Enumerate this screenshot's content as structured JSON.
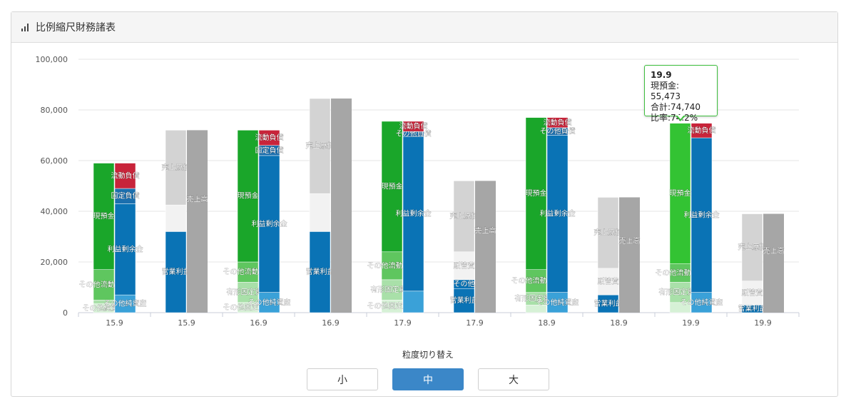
{
  "panel": {
    "title": "比例縮尺財務諸表",
    "icon": "bar-signal-icon"
  },
  "granularity": {
    "label": "粒度切り替え",
    "options": [
      "小",
      "中",
      "大"
    ],
    "selected": "中"
  },
  "tooltip": {
    "title": "19.9",
    "line1": "現預金: 55,473",
    "line2": "合計:74,740",
    "line3": "比率:74.2%"
  },
  "colors": {
    "cash": "#1aa62a",
    "other_current_assets": "#5fc65f",
    "tangible_assets": "#a9e0a9",
    "other_assets": "#d6f1d6",
    "current_liabilities": "#c8243a",
    "fixed_liabilities": "#1b6fae",
    "retained_earnings": "#0a73b5",
    "other_net_assets": "#3aa1d8",
    "cost_of_sales": "#d3d3d3",
    "sga": "#f2f2f2",
    "other_expense": "#0a73b5",
    "operating_profit": "#0a73b5",
    "sales": "#a6a6a6",
    "highlight_cash": "#33c333"
  },
  "chart_data": {
    "type": "bar",
    "subtype": "stacked-paired",
    "ylim": [
      0,
      100000
    ],
    "yticks": [
      "0",
      "20,000",
      "40,000",
      "60,000",
      "80,000",
      "100,000"
    ],
    "categories": [
      "15.9",
      "15.9",
      "16.9",
      "16.9",
      "17.9",
      "17.9",
      "18.9",
      "18.9",
      "19.9",
      "19.9"
    ],
    "groups": [
      {
        "kind": "bs",
        "category": "15.9",
        "assets": [
          {
            "label": "その他純資産",
            "value": 3500,
            "color": "other_assets"
          },
          {
            "label": "",
            "value": 1500,
            "color": "tangible_assets"
          },
          {
            "label": "その他流動資産",
            "value": 12000,
            "color": "other_current_assets"
          },
          {
            "label": "現預金",
            "value": 42000,
            "color": "cash"
          }
        ],
        "liabilities": [
          {
            "label": "その他純資産",
            "value": 7000,
            "color": "other_net_assets"
          },
          {
            "label": "利益剰余金",
            "value": 36000,
            "color": "retained_earnings"
          },
          {
            "label": "固定負債",
            "value": 6000,
            "color": "fixed_liabilities"
          },
          {
            "label": "流動負債",
            "value": 10000,
            "color": "current_liabilities"
          }
        ]
      },
      {
        "kind": "pl",
        "category": "15.9",
        "expenses": [
          {
            "label": "営業利益",
            "value": 32000,
            "color": "operating_profit"
          },
          {
            "label": "",
            "value": 10500,
            "color": "sga"
          },
          {
            "label": "売上原価",
            "value": 29500,
            "color": "cost_of_sales"
          }
        ],
        "sales": {
          "label": "売上高",
          "value": 72000
        }
      },
      {
        "kind": "bs",
        "category": "16.9",
        "assets": [
          {
            "label": "その他固定資産",
            "value": 4000,
            "color": "other_assets"
          },
          {
            "label": "有形固定資産",
            "value": 8000,
            "color": "tangible_assets"
          },
          {
            "label": "その他流動資産",
            "value": 8000,
            "color": "other_current_assets"
          },
          {
            "label": "現預金",
            "value": 52000,
            "color": "cash"
          }
        ],
        "liabilities": [
          {
            "label": "その他純資産",
            "value": 8000,
            "color": "other_net_assets"
          },
          {
            "label": "利益剰余金",
            "value": 54000,
            "color": "retained_earnings"
          },
          {
            "label": "固定負債",
            "value": 4000,
            "color": "fixed_liabilities"
          },
          {
            "label": "流動負債",
            "value": 6000,
            "color": "current_liabilities"
          }
        ]
      },
      {
        "kind": "pl",
        "category": "16.9",
        "expenses": [
          {
            "label": "営業利益",
            "value": 32000,
            "color": "operating_profit"
          },
          {
            "label": "",
            "value": 15000,
            "color": "sga"
          },
          {
            "label": "売上原価",
            "value": 37500,
            "color": "cost_of_sales"
          }
        ],
        "sales": {
          "label": "",
          "value": 84500
        }
      },
      {
        "kind": "bs",
        "category": "17.9",
        "assets": [
          {
            "label": "その他固定資産",
            "value": 5000,
            "color": "other_assets"
          },
          {
            "label": "有形固定資産",
            "value": 8000,
            "color": "tangible_assets"
          },
          {
            "label": "その他流動資産",
            "value": 11000,
            "color": "other_current_assets"
          },
          {
            "label": "現預金",
            "value": 51500,
            "color": "cash"
          }
        ],
        "liabilities": [
          {
            "label": "",
            "value": 8500,
            "color": "other_net_assets"
          },
          {
            "label": "利益剰余金",
            "value": 61000,
            "color": "retained_earnings"
          },
          {
            "label": "その他負債",
            "value": 2000,
            "color": "fixed_liabilities"
          },
          {
            "label": "流動負債",
            "value": 4000,
            "color": "current_liabilities"
          }
        ]
      },
      {
        "kind": "pl",
        "category": "17.9",
        "expenses": [
          {
            "label": "営業利益",
            "value": 9500,
            "color": "operating_profit"
          },
          {
            "label": "その他",
            "value": 3500,
            "color": "other_expense"
          },
          {
            "label": "販管費",
            "value": 11000,
            "color": "sga"
          },
          {
            "label": "売上原価",
            "value": 28000,
            "color": "cost_of_sales"
          }
        ],
        "sales": {
          "label": "売上高",
          "value": 52000
        }
      },
      {
        "kind": "bs",
        "category": "18.9",
        "assets": [
          {
            "label": "",
            "value": 3000,
            "color": "other_assets"
          },
          {
            "label": "有形固定資産",
            "value": 5000,
            "color": "tangible_assets"
          },
          {
            "label": "その他流動資産",
            "value": 9000,
            "color": "other_current_assets"
          },
          {
            "label": "現預金",
            "value": 60000,
            "color": "cash"
          }
        ],
        "liabilities": [
          {
            "label": "その他純資産",
            "value": 8000,
            "color": "other_net_assets"
          },
          {
            "label": "利益剰余金",
            "value": 62000,
            "color": "retained_earnings"
          },
          {
            "label": "その他負債",
            "value": 3000,
            "color": "fixed_liabilities"
          },
          {
            "label": "流動負債",
            "value": 4000,
            "color": "current_liabilities"
          }
        ]
      },
      {
        "kind": "pl",
        "category": "18.9",
        "expenses": [
          {
            "label": "営業利益",
            "value": 7000,
            "color": "operating_profit"
          },
          {
            "label": "販管費",
            "value": 10500,
            "color": "sga"
          },
          {
            "label": "売上原価",
            "value": 28000,
            "color": "cost_of_sales"
          }
        ],
        "sales": {
          "label": "売上高",
          "value": 45500
        }
      },
      {
        "kind": "bs",
        "category": "19.9",
        "highlight": true,
        "assets": [
          {
            "label": "",
            "value": 4000,
            "color": "other_assets"
          },
          {
            "label": "有形固定資産",
            "value": 8000,
            "color": "tangible_assets"
          },
          {
            "label": "その他流動資産",
            "value": 7267,
            "color": "other_current_assets"
          },
          {
            "label": "現預金",
            "value": 55473,
            "color": "highlight_cash"
          }
        ],
        "liabilities": [
          {
            "label": "その他純資産",
            "value": 8000,
            "color": "other_net_assets"
          },
          {
            "label": "利益剰余金",
            "value": 61000,
            "color": "retained_earnings"
          },
          {
            "label": "流動負債",
            "value": 5740,
            "color": "current_liabilities"
          }
        ]
      },
      {
        "kind": "pl",
        "category": "19.9",
        "expenses": [
          {
            "label": "営業利益",
            "value": 3000,
            "color": "operating_profit"
          },
          {
            "label": "販管費",
            "value": 9500,
            "color": "sga"
          },
          {
            "label": "売上原価",
            "value": 26500,
            "color": "cost_of_sales"
          }
        ],
        "sales": {
          "label": "売上高",
          "value": 39000
        }
      }
    ]
  }
}
